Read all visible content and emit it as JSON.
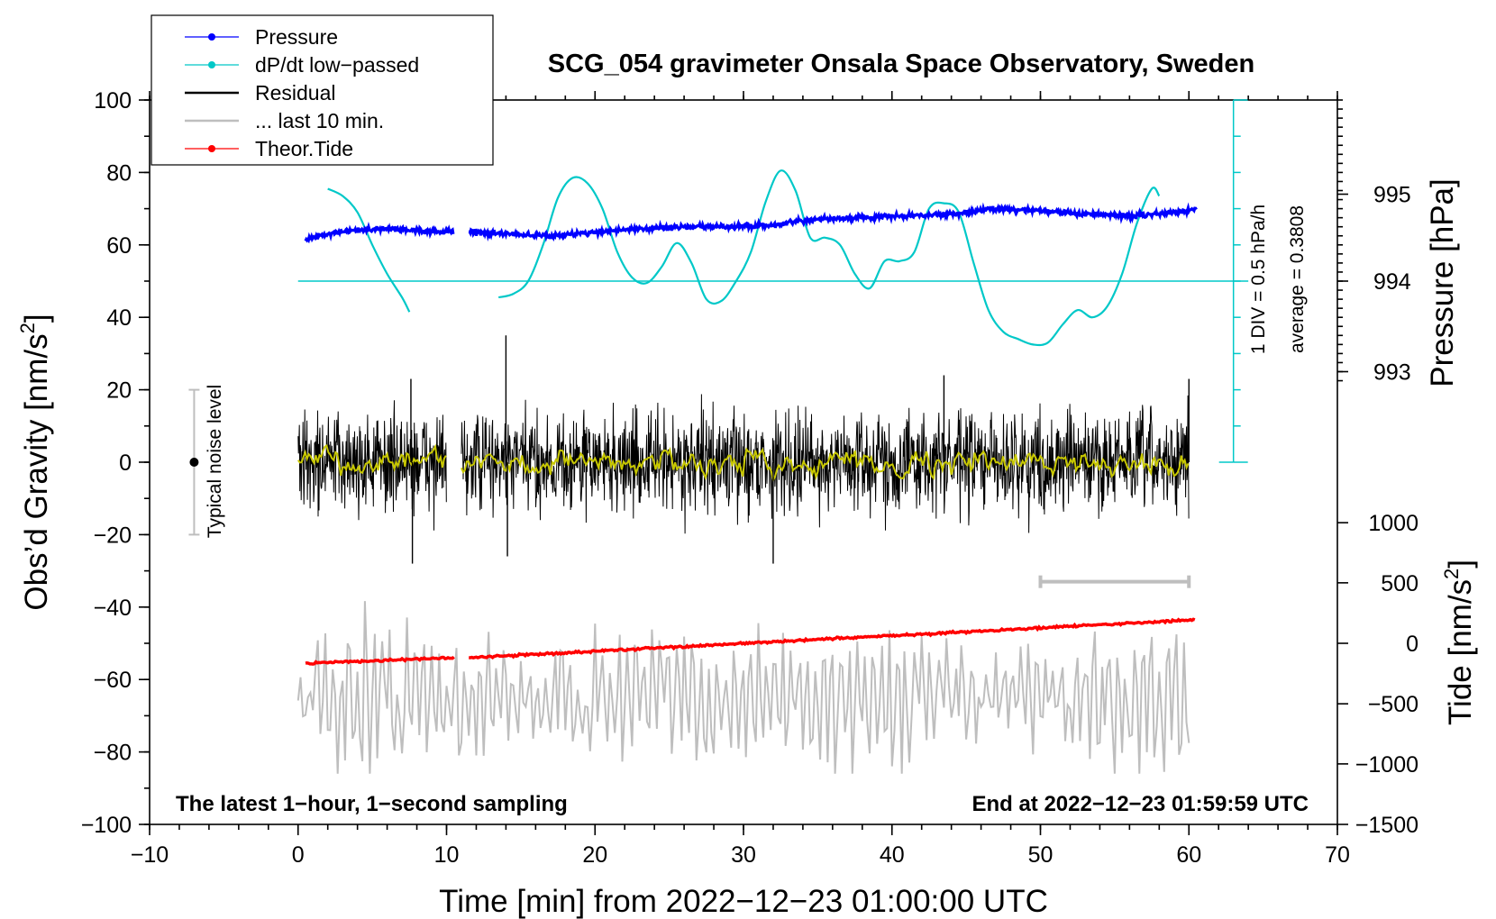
{
  "chart_data": {
    "type": "line",
    "title": "SCG_054 gravimeter Onsala Space Observatory, Sweden",
    "xlabel": "Time [min] from 2022−12−23 01:00:00 UTC",
    "ylabel_left_main": "Obs’d Gravity [nm/s",
    "ylabel_left_sup": "2",
    "ylabel_left_end": "]",
    "ylabel_pressure": "Pressure [hPa]",
    "ylabel_tide_main": "Tide [nm/s",
    "ylabel_tide_sup": "2",
    "ylabel_tide_end": "]",
    "xlim": [
      -10,
      70
    ],
    "ylim": [
      -100,
      100
    ],
    "x_ticks": [
      {
        "value": -10,
        "label": "−10"
      },
      {
        "value": 0,
        "label": "0"
      },
      {
        "value": 10,
        "label": "10"
      },
      {
        "value": 20,
        "label": "20"
      },
      {
        "value": 30,
        "label": "30"
      },
      {
        "value": 40,
        "label": "40"
      },
      {
        "value": 50,
        "label": "50"
      },
      {
        "value": 60,
        "label": "60"
      },
      {
        "value": 70,
        "label": "70"
      }
    ],
    "y_ticks": [
      {
        "value": 100,
        "label": "100"
      },
      {
        "value": 80,
        "label": "80"
      },
      {
        "value": 60,
        "label": "60"
      },
      {
        "value": 40,
        "label": "40"
      },
      {
        "value": 20,
        "label": "20"
      },
      {
        "value": 0,
        "label": "0"
      },
      {
        "value": -20,
        "label": "−20"
      },
      {
        "value": -40,
        "label": "−40"
      },
      {
        "value": -60,
        "label": "−60"
      },
      {
        "value": -80,
        "label": "−80"
      },
      {
        "value": -100,
        "label": "−100"
      }
    ],
    "pressure_axis": {
      "ticks": [
        {
          "value": 995,
          "label": "995",
          "y": 74
        },
        {
          "value": 994,
          "label": "994",
          "y": 50
        },
        {
          "value": 993,
          "label": "993",
          "y": 25
        }
      ]
    },
    "tide_axis": {
      "ticks": [
        {
          "value": 1000,
          "label": "1000",
          "y": -16.7
        },
        {
          "value": 500,
          "label": "500",
          "y": -33.3
        },
        {
          "value": 0,
          "label": "0",
          "y": -50
        },
        {
          "value": -500,
          "label": "−500",
          "y": -66.7
        },
        {
          "value": -1000,
          "label": "−1000",
          "y": -83.3
        },
        {
          "value": -1500,
          "label": "−1500",
          "y": -100
        }
      ]
    },
    "dpdt_scale": {
      "label": "1 DIV = 0.5 hPa/h",
      "average_label": "average = 0.3808",
      "x": 63,
      "y_range": [
        0,
        100
      ],
      "div": 10
    },
    "legend": {
      "position": "top-left",
      "entries": [
        {
          "label": "Pressure",
          "color": "#0000ff",
          "marker": true
        },
        {
          "label": "dP/dt low−passed",
          "color": "#00c8c8",
          "marker": true
        },
        {
          "label": "Residual",
          "color": "#000000",
          "marker": false
        },
        {
          "label": "... last 10 min.",
          "color": "#bebebe",
          "marker": false
        },
        {
          "label": "Theor.Tide",
          "color": "#ff0000",
          "marker": true
        }
      ]
    },
    "noise_level": {
      "label": "Typical noise level",
      "x": -7,
      "center": 0,
      "range": [
        -20,
        20
      ]
    },
    "last10_bar": {
      "x_range": [
        50,
        60
      ],
      "y": -33
    },
    "dpdt_baseline": {
      "y": 50,
      "x_range": [
        0,
        64
      ]
    },
    "series": {
      "pressure": {
        "name": "Pressure",
        "color": "#0000ff",
        "segments": [
          {
            "x": [
              0.5,
              2,
              4,
              6,
              8,
              10.5
            ],
            "y": [
              61.5,
              63,
              64,
              64.5,
              64,
              63.5
            ]
          },
          {
            "x": [
              11.5,
              14,
              17,
              20,
              23,
              26,
              29,
              32,
              35,
              38,
              41,
              44,
              47,
              50,
              53,
              56,
              58,
              60.5
            ],
            "y": [
              63.5,
              63,
              62.5,
              63.5,
              64.5,
              65,
              65,
              65.5,
              67,
              67.5,
              68,
              68.5,
              70,
              69.5,
              68.5,
              68,
              68.5,
              70
            ]
          }
        ]
      },
      "dpdt": {
        "name": "dP/dt low−passed",
        "color": "#00c8c8",
        "segments": [
          {
            "x": [
              2,
              3,
              4,
              5,
              6,
              7,
              7.5
            ],
            "y": [
              75.5,
              73.5,
              69,
              60,
              52,
              45.5,
              41.5
            ]
          },
          {
            "x": [
              13.5,
              14.5,
              15.5,
              16.5,
              17.5,
              18.5,
              19.5,
              20.5,
              21.5,
              22.5,
              23.5,
              24.5,
              25.5,
              26.5,
              27.5,
              28.5,
              29.5,
              30.5,
              31.5,
              32.5,
              33.5,
              34.5,
              35.5,
              36.5,
              37.5,
              38.5,
              39.5,
              40.5,
              41.5,
              42.5,
              43.5,
              44.5,
              45.5,
              46.5,
              47.5,
              48.5,
              49.5,
              50.5,
              51.5,
              52.5,
              53.5,
              54.5,
              55.5,
              56.5,
              57.5,
              58
            ],
            "y": [
              45.5,
              46.5,
              50,
              60,
              73,
              78.5,
              77,
              70,
              58,
              51,
              49.5,
              54,
              60.5,
              55,
              45,
              44.5,
              50,
              58,
              72,
              80.5,
              75,
              62,
              62,
              60,
              52,
              48,
              55.5,
              55.5,
              58,
              70,
              71.5,
              69,
              55,
              42,
              36,
              34,
              32.5,
              33,
              38,
              42,
              40,
              43,
              52,
              66,
              75.5,
              73.5
            ]
          }
        ]
      },
      "residual": {
        "name": "Residual",
        "color": "#000000",
        "segments": [
          {
            "x_range": [
              0,
              10
            ]
          },
          {
            "x_range": [
              11,
              60
            ]
          }
        ],
        "amplitude": 12,
        "spikes": [
          {
            "x": 14,
            "y": 35
          },
          {
            "x": 14.1,
            "y": -26
          },
          {
            "x": 7.7,
            "y": -28
          },
          {
            "x": 7.6,
            "y": 23
          },
          {
            "x": 32,
            "y": -28
          },
          {
            "x": 43.5,
            "y": 24
          },
          {
            "x": 60,
            "y": 23
          }
        ]
      },
      "residual_smoothed": {
        "name": "Residual (smoothed)",
        "color": "#c8c800"
      },
      "last10": {
        "name": "... last 10 min.",
        "color": "#bebebe",
        "x_range": [
          0,
          60
        ],
        "center": -65,
        "amplitude": 12
      },
      "tide": {
        "name": "Theor.Tide",
        "color": "#ff0000",
        "segments": [
          {
            "x": [
              0.5,
              10.5
            ],
            "y": [
              -55.5,
              -54
            ]
          },
          {
            "x": [
              11.5,
              60.5
            ],
            "y": [
              -54,
              -43.5
            ]
          }
        ]
      }
    },
    "annotations": {
      "bottom_left": "The latest 1−hour, 1−second sampling",
      "bottom_right": "End at 2022−12−23 01:59:59 UTC"
    }
  }
}
